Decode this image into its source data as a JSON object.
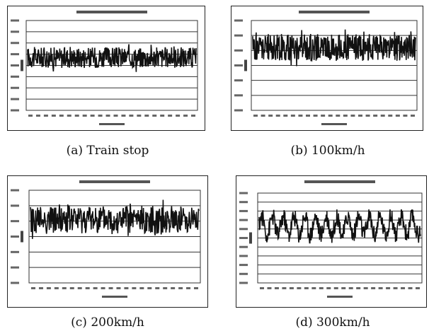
{
  "captions": [
    "(a) Train stop",
    "(b) 100km/h",
    "(c) 200km/h",
    "(d) 300km/h"
  ],
  "chart_data": [
    {
      "type": "line",
      "title": "",
      "xlabel": "",
      "ylabel": "",
      "ylim": [
        0,
        9
      ],
      "gridlines": 8,
      "band": [
        3.8,
        6.8
      ],
      "mean": 5.3,
      "pattern": "noise"
    },
    {
      "type": "line",
      "title": "",
      "xlabel": "",
      "ylabel": "",
      "ylim": [
        0,
        7
      ],
      "gridlines": 6,
      "band": [
        3.3,
        6.3
      ],
      "mean": 4.9,
      "pattern": "noise"
    },
    {
      "type": "line",
      "title": "",
      "xlabel": "",
      "ylabel": "",
      "ylim": [
        0,
        7
      ],
      "gridlines": 6,
      "band": [
        3.3,
        6.3
      ],
      "mean": 4.8,
      "pattern": "noise"
    },
    {
      "type": "line",
      "title": "",
      "xlabel": "",
      "ylabel": "",
      "ylim": [
        0,
        11
      ],
      "gridlines": 10,
      "band": [
        4.9,
        9.0
      ],
      "mean": 7.0,
      "pattern": "periodic"
    }
  ],
  "colors": {
    "trace": "#111111",
    "grid": "#333333",
    "frame": "#222222"
  }
}
